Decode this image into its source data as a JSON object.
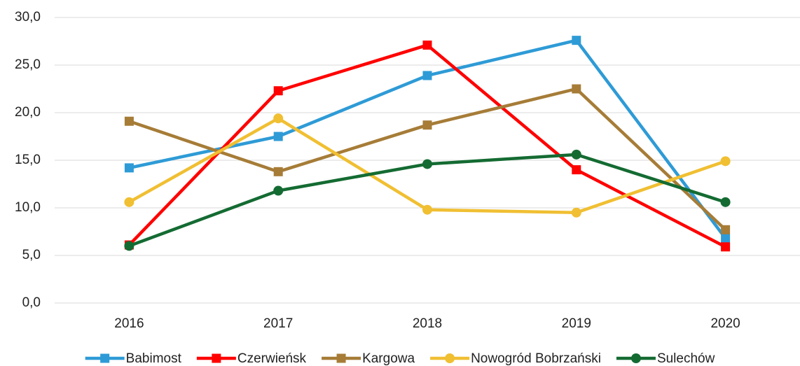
{
  "chart_data": {
    "type": "line",
    "categories": [
      "2016",
      "2017",
      "2018",
      "2019",
      "2020"
    ],
    "series": [
      {
        "name": "Babimost",
        "color": "#2e9bd6",
        "marker": "square",
        "values": [
          14.2,
          17.5,
          23.9,
          27.6,
          6.8
        ]
      },
      {
        "name": "Czerwieńsk",
        "color": "#ff0000",
        "marker": "square",
        "values": [
          6.1,
          22.3,
          27.1,
          14.0,
          5.9
        ]
      },
      {
        "name": "Kargowa",
        "color": "#a67c37",
        "marker": "square",
        "values": [
          19.1,
          13.8,
          18.7,
          22.5,
          7.7
        ]
      },
      {
        "name": "Nowogród Bobrzański",
        "color": "#f0bf32",
        "marker": "circle",
        "values": [
          10.6,
          19.4,
          9.8,
          9.5,
          14.9
        ]
      },
      {
        "name": "Sulechów",
        "color": "#146b32",
        "marker": "circle",
        "values": [
          6.0,
          11.8,
          14.6,
          15.6,
          10.6
        ]
      }
    ],
    "ylim": [
      0,
      30
    ],
    "yticks": [
      {
        "value": 0,
        "label": "0,0"
      },
      {
        "value": 5,
        "label": "5,0"
      },
      {
        "value": 10,
        "label": "10,0"
      },
      {
        "value": 15,
        "label": "15,0"
      },
      {
        "value": 20,
        "label": "20,0"
      },
      {
        "value": 25,
        "label": "25,0"
      },
      {
        "value": 30,
        "label": "30,0"
      }
    ],
    "grid": true,
    "legend": "bottom"
  }
}
